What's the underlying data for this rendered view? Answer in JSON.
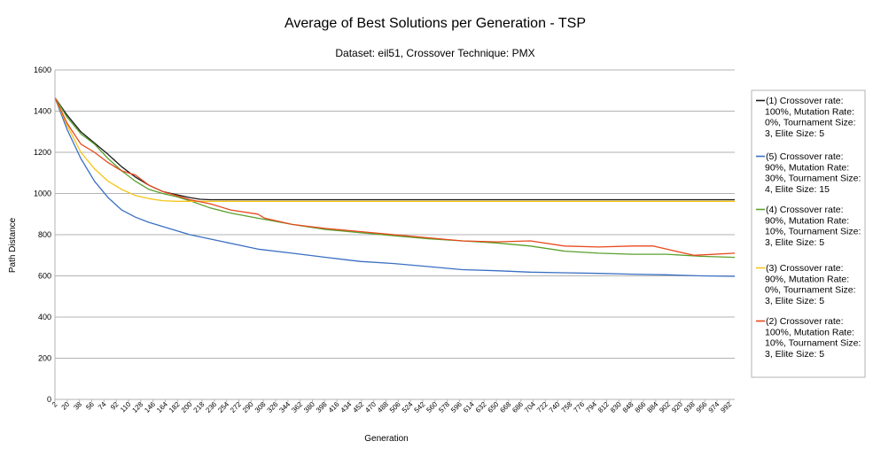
{
  "chart_data": {
    "type": "line",
    "title": "Average of Best Solutions per Generation - TSP",
    "subtitle": "Dataset: eil51, Crossover Technique: PMX",
    "xlabel": "Generation",
    "ylabel": "Path Distance",
    "ylim": [
      0,
      1600
    ],
    "yticks": [
      0,
      200,
      400,
      600,
      800,
      1000,
      1200,
      1400,
      1600
    ],
    "xlim": [
      2,
      1000
    ],
    "xticks": [
      2,
      20,
      38,
      56,
      74,
      92,
      110,
      128,
      146,
      164,
      182,
      200,
      218,
      236,
      254,
      272,
      290,
      308,
      326,
      344,
      362,
      380,
      398,
      416,
      434,
      452,
      470,
      488,
      506,
      524,
      542,
      560,
      578,
      596,
      614,
      632,
      650,
      668,
      686,
      704,
      722,
      740,
      758,
      776,
      794,
      812,
      830,
      848,
      866,
      884,
      902,
      920,
      938,
      956,
      974,
      992
    ],
    "grid": true,
    "legend_position": "right",
    "series": [
      {
        "name": "(1) Crossover rate: 100%, Mutation Rate: 0%, Tournament Size: 3, Elite Size: 5",
        "color": "#1a1a1a",
        "x": [
          2,
          20,
          40,
          60,
          80,
          100,
          120,
          140,
          160,
          180,
          200,
          215,
          230,
          260,
          300,
          400,
          500,
          600,
          700,
          800,
          900,
          1000
        ],
        "y": [
          1465,
          1380,
          1300,
          1245,
          1190,
          1130,
          1080,
          1040,
          1010,
          995,
          980,
          972,
          970,
          970,
          970,
          970,
          970,
          970,
          970,
          970,
          970,
          970
        ]
      },
      {
        "name": "(5) Crossover rate: 90%, Mutation Rate: 30%, Tournament Size: 4, Elite Size: 15",
        "color": "#3a6fc4",
        "x": [
          2,
          20,
          40,
          60,
          80,
          100,
          120,
          140,
          160,
          180,
          200,
          250,
          300,
          350,
          400,
          450,
          500,
          550,
          600,
          650,
          700,
          750,
          800,
          850,
          900,
          950,
          1000
        ],
        "y": [
          1465,
          1310,
          1170,
          1060,
          980,
          920,
          885,
          860,
          840,
          820,
          800,
          765,
          730,
          710,
          690,
          670,
          660,
          645,
          630,
          625,
          618,
          615,
          612,
          608,
          605,
          600,
          598
        ]
      },
      {
        "name": "(4) Crossover rate: 90%, Mutation Rate: 10%, Tournament Size: 3, Elite Size: 5",
        "color": "#5aa02c",
        "x": [
          2,
          20,
          40,
          60,
          80,
          100,
          120,
          140,
          160,
          180,
          200,
          230,
          260,
          300,
          350,
          400,
          450,
          500,
          550,
          600,
          650,
          700,
          750,
          800,
          850,
          900,
          950,
          1000
        ],
        "y": [
          1465,
          1370,
          1290,
          1240,
          1170,
          1110,
          1060,
          1020,
          1000,
          985,
          965,
          930,
          905,
          880,
          850,
          825,
          810,
          795,
          780,
          770,
          760,
          745,
          720,
          710,
          705,
          705,
          695,
          690
        ]
      },
      {
        "name": "(3) Crossover rate: 90%, Mutation Rate: 0%, Tournament Size: 3, Elite Size: 5",
        "color": "#f5c518",
        "x": [
          2,
          20,
          40,
          60,
          80,
          100,
          120,
          140,
          160,
          180,
          200,
          230,
          300,
          400,
          500,
          600,
          700,
          800,
          900,
          1000
        ],
        "y": [
          1465,
          1330,
          1200,
          1120,
          1060,
          1020,
          990,
          975,
          965,
          962,
          962,
          962,
          962,
          962,
          962,
          962,
          962,
          962,
          962,
          962
        ]
      },
      {
        "name": "(2) Crossover rate: 100%, Mutation Rate: 10%, Tournament Size: 3, Elite Size: 5",
        "color": "#e8481c",
        "x": [
          2,
          20,
          40,
          60,
          80,
          100,
          120,
          140,
          160,
          180,
          200,
          230,
          260,
          300,
          310,
          350,
          400,
          450,
          500,
          550,
          600,
          650,
          700,
          750,
          800,
          850,
          880,
          900,
          940,
          1000
        ],
        "y": [
          1465,
          1340,
          1240,
          1200,
          1150,
          1110,
          1090,
          1040,
          1010,
          990,
          970,
          950,
          920,
          900,
          880,
          850,
          830,
          815,
          800,
          785,
          770,
          765,
          770,
          745,
          740,
          745,
          745,
          730,
          700,
          710
        ]
      }
    ]
  }
}
